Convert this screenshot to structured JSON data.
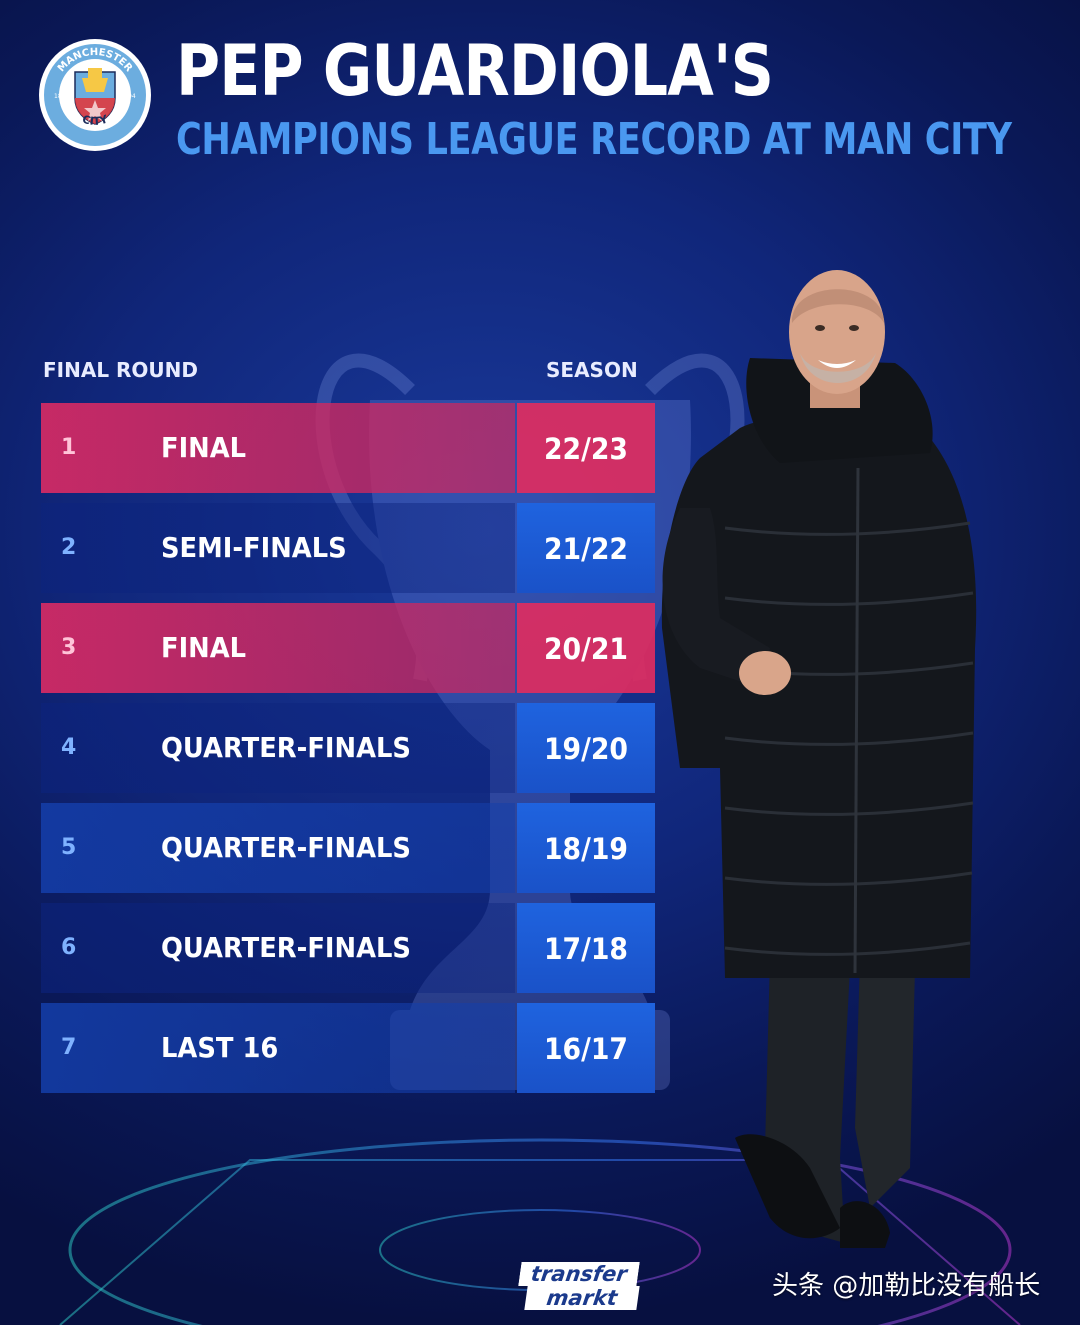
{
  "header": {
    "title": "PEP GUARDIOLA'S",
    "subtitle": "CHAMPIONS LEAGUE RECORD AT MAN CITY"
  },
  "logo": {
    "top_text": "MANCHESTER",
    "bottom_text": "CITY",
    "year_left": "18",
    "year_right": "94"
  },
  "table": {
    "col_round": "FINAL ROUND",
    "col_season": "SEASON",
    "rows": [
      {
        "num": "1",
        "round": "FINAL",
        "season": "22/23"
      },
      {
        "num": "2",
        "round": "SEMI-FINALS",
        "season": "21/22"
      },
      {
        "num": "3",
        "round": "FINAL",
        "season": "20/21"
      },
      {
        "num": "4",
        "round": "QUARTER-FINALS",
        "season": "19/20"
      },
      {
        "num": "5",
        "round": "QUARTER-FINALS",
        "season": "18/19"
      },
      {
        "num": "6",
        "round": "QUARTER-FINALS",
        "season": "17/18"
      },
      {
        "num": "7",
        "round": "LAST 16",
        "season": "16/17"
      }
    ]
  },
  "footer": {
    "brand_top": "transfer",
    "brand_bottom": "markt",
    "credit": "头条 @加勒比没有船长"
  },
  "colors": {
    "background": "#10267a",
    "final_row": "#d62a64",
    "season_cell": "#1f63df",
    "subtitle": "#4a98f0"
  }
}
